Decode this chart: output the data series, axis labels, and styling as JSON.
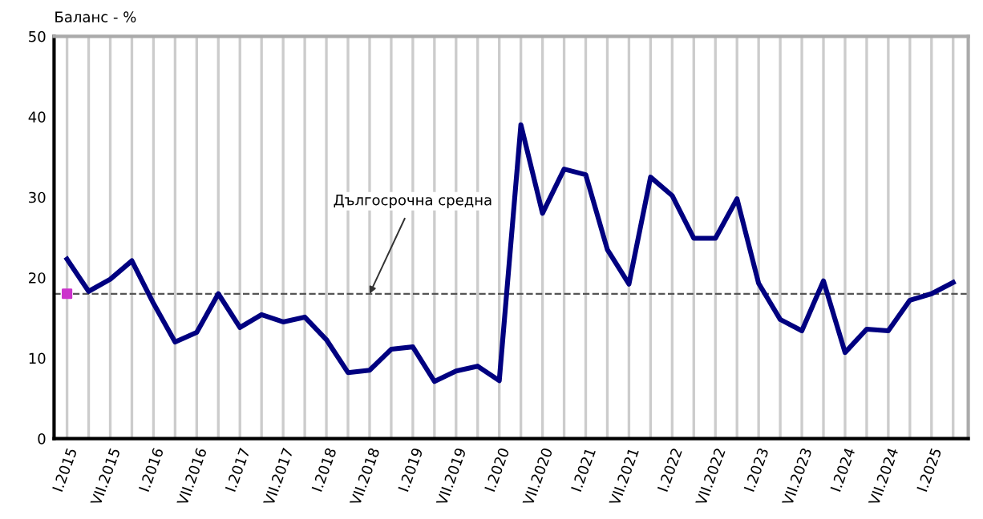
{
  "chart_data": {
    "type": "line",
    "ylabel": "Баланс - %",
    "categories": [
      "I.2015",
      null,
      "VII.2015",
      null,
      "I.2016",
      null,
      "VII.2016",
      null,
      "I.2017",
      null,
      "VII.2017",
      null,
      "I.2018",
      null,
      "VII.2018",
      null,
      "I.2019",
      null,
      "VII.2019",
      null,
      "I.2020",
      null,
      "VII.2020",
      null,
      "I.2021",
      null,
      "VII.2021",
      null,
      "I.2022",
      null,
      "VII.2022",
      null,
      "I.2023",
      null,
      "VII.2023",
      null,
      "I.2024",
      null,
      "VII.2024",
      null,
      "I.2025",
      null
    ],
    "series": [
      {
        "color": "#000080",
        "values": [
          22.3,
          18.3,
          19.8,
          22.1,
          16.8,
          12.0,
          13.2,
          18.0,
          13.8,
          15.4,
          14.5,
          15.1,
          12.3,
          8.2,
          8.5,
          11.1,
          11.4,
          7.1,
          8.4,
          9.0,
          7.2,
          39.0,
          28.0,
          33.5,
          32.8,
          23.5,
          19.2,
          32.5,
          30.2,
          24.9,
          24.9,
          29.8,
          19.3,
          14.8,
          13.4,
          19.6,
          10.7,
          13.6,
          13.4,
          17.2,
          18.0,
          19.4
        ]
      },
      {
        "type": "scatter",
        "marker": "square",
        "color": "#cc33cc",
        "values": [
          18,
          null,
          null,
          null,
          null,
          null,
          null,
          null,
          null,
          null,
          null,
          null,
          null,
          null,
          null,
          null,
          null,
          null,
          null,
          null,
          null,
          null,
          null,
          null,
          null,
          null,
          null,
          null,
          null,
          null,
          null,
          null,
          null,
          null,
          null,
          null,
          null,
          null,
          null,
          null,
          null,
          null
        ]
      }
    ],
    "ref_lines": [
      {
        "axis": "y",
        "value": 18,
        "color": "#555555",
        "line_style": "dashed"
      }
    ],
    "annotations": [
      {
        "text": "Дългосрочна средна",
        "x": "VII.2018",
        "y": 18
      }
    ],
    "ylim": [
      0,
      50
    ],
    "yticks": [
      0,
      10,
      20,
      30,
      40,
      50
    ],
    "grid": "x",
    "legend": false
  }
}
